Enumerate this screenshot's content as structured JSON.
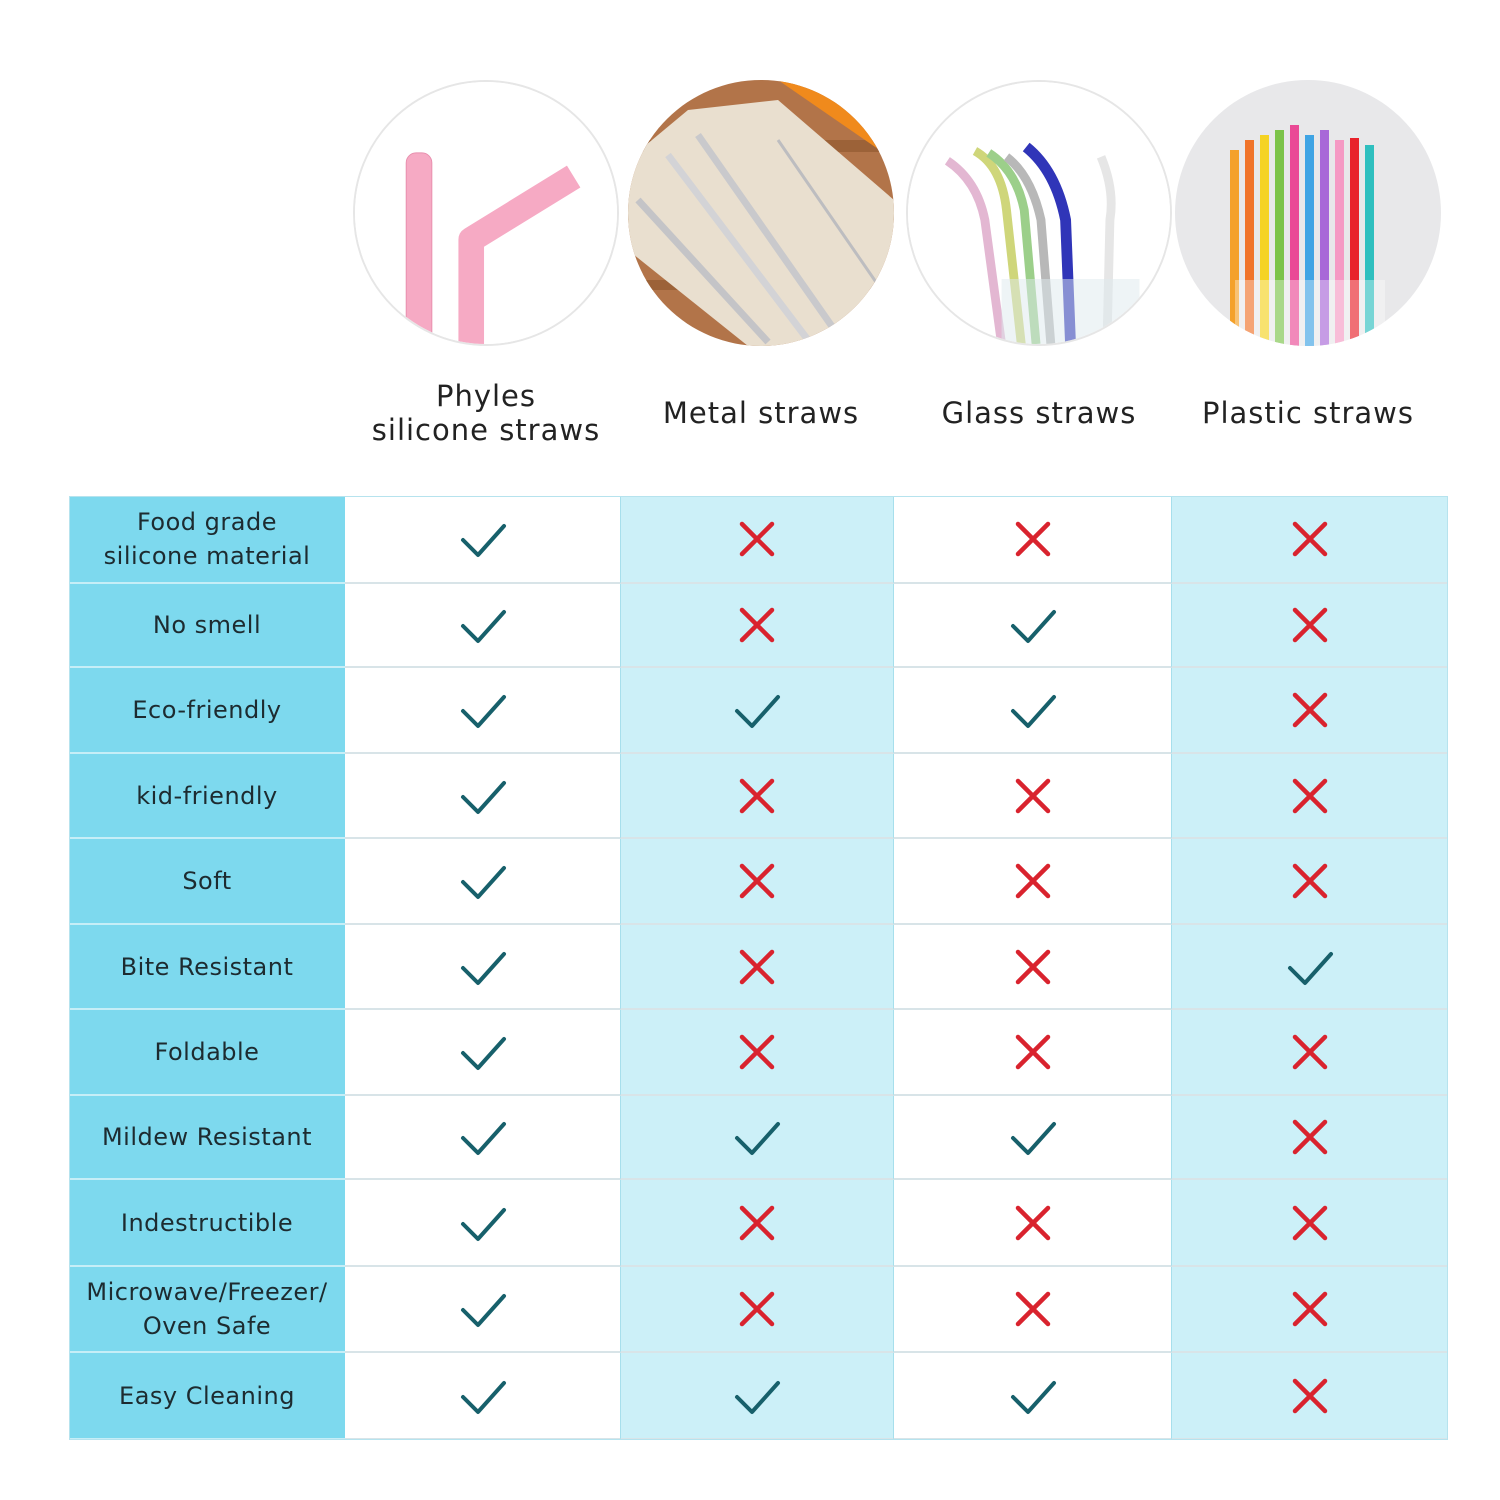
{
  "columns": [
    {
      "title": "Phyles\nsilicone straws",
      "image": "pink-silicone-straws-icon"
    },
    {
      "title": "Metal straws",
      "image": "metal-straws-icon"
    },
    {
      "title": "Glass straws",
      "image": "glass-straws-icon"
    },
    {
      "title": "Plastic straws",
      "image": "plastic-straws-icon"
    }
  ],
  "rows": [
    {
      "feature": "Food grade\nsilicone material",
      "values": [
        true,
        false,
        false,
        false
      ]
    },
    {
      "feature": "No smell",
      "values": [
        true,
        false,
        true,
        false
      ]
    },
    {
      "feature": "Eco-friendly",
      "values": [
        true,
        true,
        true,
        false
      ]
    },
    {
      "feature": "kid-friendly",
      "values": [
        true,
        false,
        false,
        false
      ]
    },
    {
      "feature": "Soft",
      "values": [
        true,
        false,
        false,
        false
      ]
    },
    {
      "feature": "Bite Resistant",
      "values": [
        true,
        false,
        false,
        true
      ]
    },
    {
      "feature": "Foldable",
      "values": [
        true,
        false,
        false,
        false
      ]
    },
    {
      "feature": "Mildew Resistant",
      "values": [
        true,
        true,
        true,
        false
      ]
    },
    {
      "feature": "Indestructible",
      "values": [
        true,
        false,
        false,
        false
      ]
    },
    {
      "feature": "Microwave/Freezer/\nOven Safe",
      "values": [
        true,
        false,
        false,
        false
      ]
    },
    {
      "feature": "Easy Cleaning",
      "values": [
        true,
        true,
        true,
        false
      ]
    }
  ],
  "colors": {
    "check": "#17606b",
    "cross": "#d9232e",
    "feature_bg": "#7dd9ee",
    "alt_col_bg": "#ccf0f8"
  }
}
